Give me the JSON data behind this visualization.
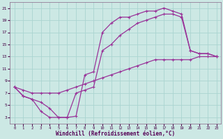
{
  "xlabel": "Windchill (Refroidissement éolien,°C)",
  "bg_color": "#cce8e4",
  "grid_color": "#aad4d0",
  "line_color": "#993399",
  "xlim": [
    -0.5,
    23.5
  ],
  "ylim": [
    2,
    22
  ],
  "xticks": [
    0,
    1,
    2,
    3,
    4,
    5,
    6,
    7,
    8,
    9,
    10,
    11,
    12,
    13,
    14,
    15,
    16,
    17,
    18,
    19,
    20,
    21,
    22,
    23
  ],
  "yticks": [
    3,
    5,
    7,
    9,
    11,
    13,
    15,
    17,
    19,
    21
  ],
  "line1_x": [
    0,
    1,
    2,
    3,
    4,
    5,
    6,
    7,
    8,
    9,
    10,
    11,
    12,
    13,
    14,
    15,
    16,
    17,
    18,
    19,
    20,
    21,
    22,
    23
  ],
  "line1_y": [
    8,
    6.5,
    6,
    4,
    3,
    3,
    3,
    3.2,
    10,
    10.5,
    17,
    18.5,
    19.5,
    19.5,
    20,
    20.5,
    20.5,
    21,
    20.5,
    20,
    14,
    13.5,
    13.5,
    13
  ],
  "line2_x": [
    0,
    1,
    2,
    3,
    4,
    5,
    6,
    7,
    8,
    9,
    10,
    11,
    12,
    13,
    14,
    15,
    16,
    17,
    18,
    19,
    20,
    21,
    22,
    23
  ],
  "line2_y": [
    8,
    6.5,
    6,
    5.5,
    4.5,
    3,
    3,
    7,
    7.5,
    8,
    14,
    15,
    16.5,
    17.5,
    18.5,
    19,
    19.5,
    20,
    20,
    19.5,
    14,
    13.5,
    13.5,
    13
  ],
  "line3_x": [
    0,
    1,
    2,
    3,
    4,
    5,
    6,
    7,
    8,
    9,
    10,
    11,
    12,
    13,
    14,
    15,
    16,
    17,
    18,
    19,
    20,
    21,
    22,
    23
  ],
  "line3_y": [
    8,
    7.5,
    7,
    7,
    7,
    7,
    7.5,
    8,
    8.5,
    9,
    9.5,
    10,
    10.5,
    11,
    11.5,
    12,
    12.5,
    12.5,
    12.5,
    12.5,
    12.5,
    13,
    13,
    13
  ]
}
